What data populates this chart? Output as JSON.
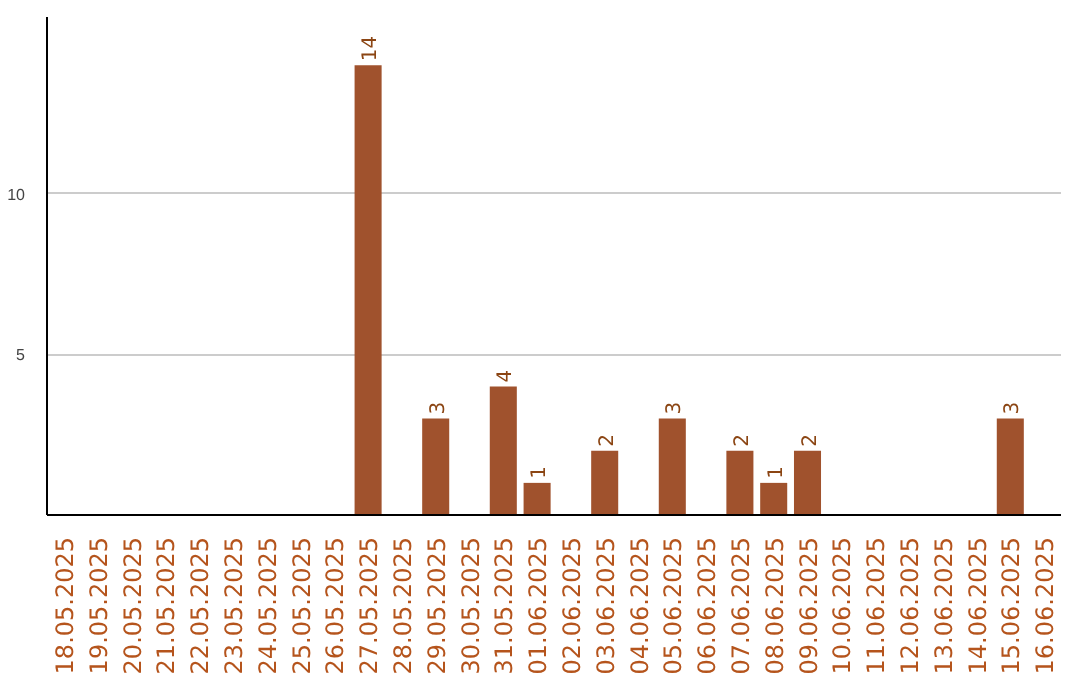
{
  "chart_data": {
    "type": "bar",
    "categories": [
      "18.05.2025",
      "19.05.2025",
      "20.05.2025",
      "21.05.2025",
      "22.05.2025",
      "23.05.2025",
      "24.05.2025",
      "25.05.2025",
      "26.05.2025",
      "27.05.2025",
      "28.05.2025",
      "29.05.2025",
      "30.05.2025",
      "31.05.2025",
      "01.06.2025",
      "02.06.2025",
      "03.06.2025",
      "04.06.2025",
      "05.06.2025",
      "06.06.2025",
      "07.06.2025",
      "08.06.2025",
      "09.06.2025",
      "10.06.2025",
      "11.06.2025",
      "12.06.2025",
      "13.06.2025",
      "14.06.2025",
      "15.06.2025",
      "16.06.2025"
    ],
    "values": [
      0,
      0,
      0,
      0,
      0,
      0,
      0,
      0,
      0,
      14,
      0,
      3,
      0,
      4,
      1,
      0,
      2,
      0,
      3,
      0,
      2,
      1,
      2,
      0,
      0,
      0,
      0,
      0,
      3,
      0
    ],
    "value_labels": [
      null,
      null,
      null,
      null,
      null,
      null,
      null,
      null,
      null,
      "14",
      null,
      "3",
      null,
      "4",
      "1",
      null,
      "2",
      null,
      "3",
      null,
      "2",
      "1",
      "2",
      null,
      null,
      null,
      null,
      null,
      "3",
      null
    ],
    "color": "#a0522d",
    "ylim": [
      0,
      15.5
    ],
    "yticks": [
      5,
      10
    ],
    "grid": "y"
  }
}
